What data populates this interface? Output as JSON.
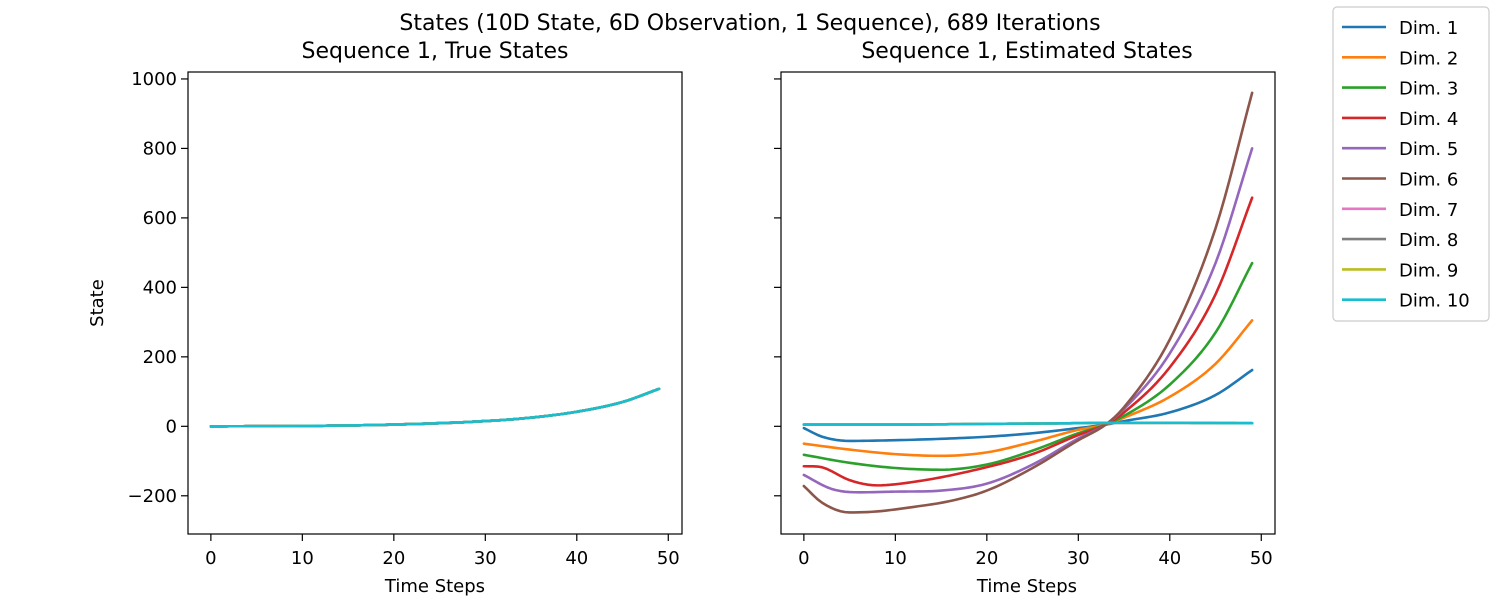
{
  "figure": {
    "suptitle": "States (10D State, 6D Observation, 1 Sequence), 689 Iterations"
  },
  "colors": [
    "#1f77b4",
    "#ff7f0e",
    "#2ca02c",
    "#d62728",
    "#9467bd",
    "#8c564b",
    "#e377c2",
    "#7f7f7f",
    "#bcbd22",
    "#17becf"
  ],
  "chart_data": [
    {
      "type": "line",
      "title": "Sequence 1, True States",
      "xlabel": "Time Steps",
      "ylabel": "State",
      "xlim": [
        -2.5,
        51.5
      ],
      "ylim": [
        -310,
        1020
      ],
      "xticks": [
        0,
        10,
        20,
        30,
        40,
        50
      ],
      "yticks": [
        -200,
        0,
        200,
        400,
        600,
        800,
        1000
      ],
      "x": {
        "start": 0,
        "end": 49,
        "step": 1
      },
      "series": [
        {
          "name": "Dim. 1",
          "points": [
            [
              0,
              0
            ],
            [
              10,
              1
            ],
            [
              20,
              5
            ],
            [
              30,
              15
            ],
            [
              35,
              25
            ],
            [
              40,
              42
            ],
            [
              45,
              70
            ],
            [
              49,
              108
            ]
          ]
        },
        {
          "name": "Dim. 2",
          "points": [
            [
              0,
              0
            ],
            [
              10,
              1
            ],
            [
              20,
              5
            ],
            [
              30,
              15
            ],
            [
              35,
              25
            ],
            [
              40,
              42
            ],
            [
              45,
              70
            ],
            [
              49,
              108
            ]
          ]
        },
        {
          "name": "Dim. 3",
          "points": [
            [
              0,
              0
            ],
            [
              10,
              1
            ],
            [
              20,
              5
            ],
            [
              30,
              15
            ],
            [
              35,
              25
            ],
            [
              40,
              42
            ],
            [
              45,
              70
            ],
            [
              49,
              108
            ]
          ]
        },
        {
          "name": "Dim. 4",
          "points": [
            [
              0,
              0
            ],
            [
              10,
              1
            ],
            [
              20,
              5
            ],
            [
              30,
              15
            ],
            [
              35,
              25
            ],
            [
              40,
              42
            ],
            [
              45,
              70
            ],
            [
              49,
              108
            ]
          ]
        },
        {
          "name": "Dim. 5",
          "points": [
            [
              0,
              0
            ],
            [
              10,
              1
            ],
            [
              20,
              5
            ],
            [
              30,
              15
            ],
            [
              35,
              25
            ],
            [
              40,
              42
            ],
            [
              45,
              70
            ],
            [
              49,
              108
            ]
          ]
        },
        {
          "name": "Dim. 6",
          "points": [
            [
              0,
              0
            ],
            [
              10,
              1
            ],
            [
              20,
              5
            ],
            [
              30,
              15
            ],
            [
              35,
              25
            ],
            [
              40,
              42
            ],
            [
              45,
              70
            ],
            [
              49,
              108
            ]
          ]
        },
        {
          "name": "Dim. 7",
          "points": [
            [
              0,
              0
            ],
            [
              10,
              1
            ],
            [
              20,
              5
            ],
            [
              30,
              15
            ],
            [
              35,
              25
            ],
            [
              40,
              42
            ],
            [
              45,
              70
            ],
            [
              49,
              108
            ]
          ]
        },
        {
          "name": "Dim. 8",
          "points": [
            [
              0,
              0
            ],
            [
              10,
              1
            ],
            [
              20,
              5
            ],
            [
              30,
              15
            ],
            [
              35,
              25
            ],
            [
              40,
              42
            ],
            [
              45,
              70
            ],
            [
              49,
              108
            ]
          ]
        },
        {
          "name": "Dim. 9",
          "points": [
            [
              0,
              0
            ],
            [
              10,
              1
            ],
            [
              20,
              5
            ],
            [
              30,
              15
            ],
            [
              35,
              25
            ],
            [
              40,
              42
            ],
            [
              45,
              70
            ],
            [
              49,
              108
            ]
          ]
        },
        {
          "name": "Dim. 10",
          "points": [
            [
              0,
              0
            ],
            [
              10,
              1
            ],
            [
              20,
              5
            ],
            [
              30,
              15
            ],
            [
              35,
              25
            ],
            [
              40,
              42
            ],
            [
              45,
              70
            ],
            [
              49,
              108
            ]
          ]
        }
      ]
    },
    {
      "type": "line",
      "title": "Sequence 1, Estimated States",
      "xlabel": "Time Steps",
      "ylabel": "",
      "xlim": [
        -2.5,
        51.5
      ],
      "ylim": [
        -310,
        1020
      ],
      "xticks": [
        0,
        10,
        20,
        30,
        40,
        50
      ],
      "yticks": [
        -200,
        0,
        200,
        400,
        600,
        800,
        1000
      ],
      "sharey": true,
      "series": [
        {
          "name": "Dim. 1",
          "points": [
            [
              0,
              -5
            ],
            [
              2,
              -30
            ],
            [
              5,
              -42
            ],
            [
              10,
              -40
            ],
            [
              15,
              -36
            ],
            [
              20,
              -30
            ],
            [
              25,
              -20
            ],
            [
              30,
              -5
            ],
            [
              33,
              5
            ],
            [
              35,
              15
            ],
            [
              40,
              40
            ],
            [
              45,
              90
            ],
            [
              49,
              162
            ]
          ]
        },
        {
          "name": "Dim. 2",
          "points": [
            [
              0,
              -50
            ],
            [
              5,
              -67
            ],
            [
              10,
              -80
            ],
            [
              15,
              -85
            ],
            [
              20,
              -75
            ],
            [
              25,
              -45
            ],
            [
              30,
              -10
            ],
            [
              33,
              5
            ],
            [
              35,
              25
            ],
            [
              40,
              85
            ],
            [
              45,
              180
            ],
            [
              49,
              305
            ]
          ]
        },
        {
          "name": "Dim. 3",
          "points": [
            [
              0,
              -82
            ],
            [
              5,
              -105
            ],
            [
              10,
              -120
            ],
            [
              15,
              -125
            ],
            [
              20,
              -110
            ],
            [
              25,
              -70
            ],
            [
              30,
              -20
            ],
            [
              33,
              5
            ],
            [
              35,
              30
            ],
            [
              40,
              120
            ],
            [
              45,
              270
            ],
            [
              49,
              470
            ]
          ]
        },
        {
          "name": "Dim. 4",
          "points": [
            [
              0,
              -115
            ],
            [
              2,
              -118
            ],
            [
              5,
              -155
            ],
            [
              8,
              -170
            ],
            [
              12,
              -160
            ],
            [
              18,
              -130
            ],
            [
              25,
              -80
            ],
            [
              30,
              -25
            ],
            [
              33,
              5
            ],
            [
              35,
              40
            ],
            [
              40,
              170
            ],
            [
              45,
              380
            ],
            [
              49,
              658
            ]
          ]
        },
        {
          "name": "Dim. 5",
          "points": [
            [
              0,
              -140
            ],
            [
              3,
              -180
            ],
            [
              6,
              -190
            ],
            [
              10,
              -188
            ],
            [
              15,
              -185
            ],
            [
              20,
              -165
            ],
            [
              25,
              -110
            ],
            [
              30,
              -35
            ],
            [
              33,
              5
            ],
            [
              35,
              50
            ],
            [
              40,
              210
            ],
            [
              45,
              470
            ],
            [
              49,
              800
            ]
          ]
        },
        {
          "name": "Dim. 6",
          "points": [
            [
              0,
              -172
            ],
            [
              2,
              -220
            ],
            [
              5,
              -248
            ],
            [
              8,
              -245
            ],
            [
              12,
              -232
            ],
            [
              16,
              -215
            ],
            [
              20,
              -185
            ],
            [
              25,
              -120
            ],
            [
              30,
              -40
            ],
            [
              33,
              5
            ],
            [
              35,
              55
            ],
            [
              40,
              250
            ],
            [
              45,
              570
            ],
            [
              49,
              960
            ]
          ]
        },
        {
          "name": "Dim. 7",
          "points": [
            [
              0,
              5
            ],
            [
              10,
              5
            ],
            [
              20,
              7
            ],
            [
              30,
              9
            ],
            [
              33,
              10
            ],
            [
              40,
              10
            ],
            [
              49,
              9
            ]
          ]
        },
        {
          "name": "Dim. 8",
          "points": [
            [
              0,
              5
            ],
            [
              10,
              5
            ],
            [
              20,
              7
            ],
            [
              30,
              9
            ],
            [
              33,
              10
            ],
            [
              40,
              10
            ],
            [
              49,
              9
            ]
          ]
        },
        {
          "name": "Dim. 9",
          "points": [
            [
              0,
              5
            ],
            [
              10,
              5
            ],
            [
              20,
              7
            ],
            [
              30,
              9
            ],
            [
              33,
              10
            ],
            [
              40,
              10
            ],
            [
              49,
              9
            ]
          ]
        },
        {
          "name": "Dim. 10",
          "points": [
            [
              0,
              5
            ],
            [
              10,
              5
            ],
            [
              20,
              7
            ],
            [
              30,
              9
            ],
            [
              33,
              10
            ],
            [
              40,
              10
            ],
            [
              49,
              9
            ]
          ]
        }
      ]
    }
  ],
  "legend": {
    "placement": "outside-right-top",
    "labels": [
      "Dim. 1",
      "Dim. 2",
      "Dim. 3",
      "Dim. 4",
      "Dim. 5",
      "Dim. 6",
      "Dim. 7",
      "Dim. 8",
      "Dim. 9",
      "Dim. 10"
    ]
  }
}
